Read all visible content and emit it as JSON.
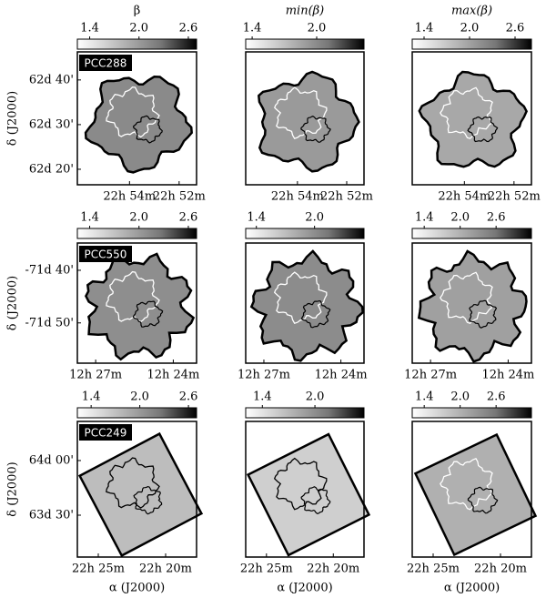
{
  "chart_data": [
    {
      "type": "map",
      "title": "β",
      "label": "PCC288",
      "ylabel": "δ (J2000)",
      "clim": [
        1.25,
        2.7
      ],
      "cticks": [
        1.4,
        {
          "value": 2,
          "label": "2.0"
        },
        2.6
      ],
      "xlim": [
        22.935,
        22.855
      ],
      "xticks": [
        {
          "value": 22.9,
          "label": "22h 54m"
        },
        {
          "value": 22.8667,
          "label": "22h 52m"
        }
      ],
      "ylim": [
        62.275,
        62.772
      ],
      "yticks": [
        {
          "value": 62.667,
          "label": "62d 40'"
        },
        {
          "value": 62.5,
          "label": "62d 30'"
        },
        {
          "value": 62.333,
          "label": "62d 20'"
        }
      ]
    },
    {
      "type": "map",
      "title": "min(β)",
      "clim": [
        1.34,
        2.44
      ],
      "cticks": [
        1.4,
        {
          "value": 2,
          "label": "2.0"
        }
      ],
      "xlim": [
        22.935,
        22.855
      ],
      "xticks": [
        {
          "value": 22.9,
          "label": "22h 54m"
        },
        {
          "value": 22.8667,
          "label": "22h 52m"
        }
      ],
      "ylim": [
        62.275,
        62.772
      ]
    },
    {
      "type": "map",
      "title": "max(β)",
      "clim": [
        1.244,
        2.816
      ],
      "cticks": [
        1.4,
        {
          "value": 2,
          "label": "2.0"
        },
        2.6
      ],
      "xlim": [
        22.935,
        22.855
      ],
      "xticks": [
        {
          "value": 22.9,
          "label": "22h 54m"
        },
        {
          "value": 22.8667,
          "label": "22h 52m"
        }
      ],
      "ylim": [
        62.275,
        62.772
      ]
    },
    {
      "type": "map",
      "label": "PCC550",
      "ylabel": "δ (J2000)",
      "clim": [
        1.25,
        2.7
      ],
      "cticks": [
        1.4,
        {
          "value": 2,
          "label": "2.0"
        },
        2.6
      ],
      "xlim": [
        12.4618,
        12.385
      ],
      "xticks": [
        {
          "value": 12.45,
          "label": "12h 27m"
        },
        {
          "value": 12.4,
          "label": "12h 24m"
        }
      ],
      "ylim": [
        -71.96,
        -71.581
      ],
      "yticks": [
        {
          "value": -71.667,
          "label": "-71d 40'"
        },
        {
          "value": -71.833,
          "label": "-71d 50'"
        }
      ]
    },
    {
      "type": "map",
      "clim": [
        1.29,
        2.51
      ],
      "cticks": [
        1.4,
        {
          "value": 2,
          "label": "2.0"
        }
      ],
      "xlim": [
        12.4618,
        12.385
      ],
      "xticks": [
        {
          "value": 12.45,
          "label": "12h 27m"
        },
        {
          "value": 12.4,
          "label": "12h 24m"
        }
      ],
      "ylim": [
        -71.96,
        -71.581
      ]
    },
    {
      "type": "map",
      "clim": [
        1.2,
        3.19
      ],
      "cticks": [
        1.4,
        {
          "value": 2,
          "label": "2.0"
        },
        2.6
      ],
      "xlim": [
        12.4618,
        12.385
      ],
      "xticks": [
        {
          "value": 12.45,
          "label": "12h 27m"
        },
        {
          "value": 12.4,
          "label": "12h 24m"
        }
      ],
      "ylim": [
        -71.96,
        -71.581
      ]
    },
    {
      "type": "map",
      "label": "PCC249",
      "ylabel": "δ (J2000)",
      "xlabel": "α (J2000)",
      "clim": [
        1.23,
        2.7
      ],
      "cticks": [
        1.4,
        {
          "value": 2,
          "label": "2.0"
        },
        2.6
      ],
      "xlim": [
        22.4426,
        22.295
      ],
      "xticks": [
        {
          "value": 22.4167,
          "label": "22h 25m"
        },
        {
          "value": 22.3333,
          "label": "22h 20m"
        }
      ],
      "ylim": [
        63.117,
        64.358
      ],
      "yticks": [
        {
          "value": 64.0,
          "label": "64d 00'"
        },
        {
          "value": 63.5,
          "label": "63d 30'"
        }
      ]
    },
    {
      "type": "map",
      "xlabel": "α (J2000)",
      "clim": [
        1.21,
        2.56
      ],
      "cticks": [
        1.4,
        {
          "value": 2,
          "label": "2.0"
        }
      ],
      "xlim": [
        22.4426,
        22.295
      ],
      "xticks": [
        {
          "value": 22.4167,
          "label": "22h 25m"
        },
        {
          "value": 22.3333,
          "label": "22h 20m"
        }
      ],
      "ylim": [
        63.117,
        64.358
      ]
    },
    {
      "type": "map",
      "xlabel": "α (J2000)",
      "clim": [
        1.2,
        3.19
      ],
      "cticks": [
        1.4,
        {
          "value": 2,
          "label": "2.0"
        },
        2.6
      ],
      "xlim": [
        22.4426,
        22.295
      ],
      "xticks": [
        {
          "value": 22.4167,
          "label": "22h 25m"
        },
        {
          "value": 22.3333,
          "label": "22h 20m"
        }
      ],
      "ylim": [
        63.117,
        64.358
      ]
    }
  ]
}
